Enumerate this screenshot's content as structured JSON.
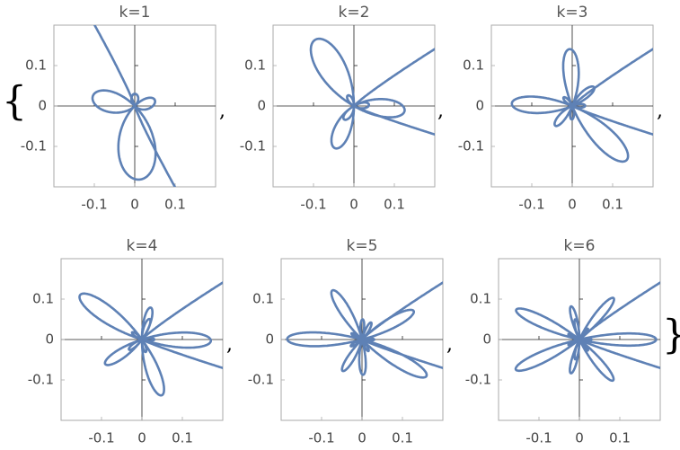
{
  "list_open": "{",
  "separator": ",",
  "list_close": "}",
  "chart_data": [
    {
      "type": "polar",
      "title": "k=1",
      "color": "#5e81b5",
      "xlim": [
        -0.2,
        0.2
      ],
      "ylim": [
        -0.2,
        0.2
      ],
      "xticks": [
        -0.1,
        0,
        0.1
      ],
      "yticks": [
        -0.1,
        0,
        0.1
      ]
    },
    {
      "type": "polar",
      "title": "k=2",
      "color": "#5e81b5",
      "xlim": [
        -0.2,
        0.2
      ],
      "ylim": [
        -0.2,
        0.2
      ],
      "xticks": [
        -0.1,
        0,
        0.1
      ],
      "yticks": [
        -0.1,
        0,
        0.1
      ]
    },
    {
      "type": "polar",
      "title": "k=3",
      "color": "#5e81b5",
      "xlim": [
        -0.2,
        0.2
      ],
      "ylim": [
        -0.2,
        0.2
      ],
      "xticks": [
        -0.1,
        0,
        0.1
      ],
      "yticks": [
        -0.1,
        0,
        0.1
      ]
    },
    {
      "type": "polar",
      "title": "k=4",
      "color": "#5e81b5",
      "xlim": [
        -0.2,
        0.2
      ],
      "ylim": [
        -0.2,
        0.2
      ],
      "xticks": [
        -0.1,
        0,
        0.1
      ],
      "yticks": [
        -0.1,
        0,
        0.1
      ]
    },
    {
      "type": "polar",
      "title": "k=5",
      "color": "#5e81b5",
      "xlim": [
        -0.2,
        0.2
      ],
      "ylim": [
        -0.2,
        0.2
      ],
      "xticks": [
        -0.1,
        0,
        0.1
      ],
      "yticks": [
        -0.1,
        0,
        0.1
      ]
    },
    {
      "type": "polar",
      "title": "k=6",
      "color": "#5e81b5",
      "xlim": [
        -0.2,
        0.2
      ],
      "ylim": [
        -0.2,
        0.2
      ],
      "xticks": [
        -0.1,
        0,
        0.1
      ],
      "yticks": [
        -0.1,
        0,
        0.1
      ]
    }
  ]
}
